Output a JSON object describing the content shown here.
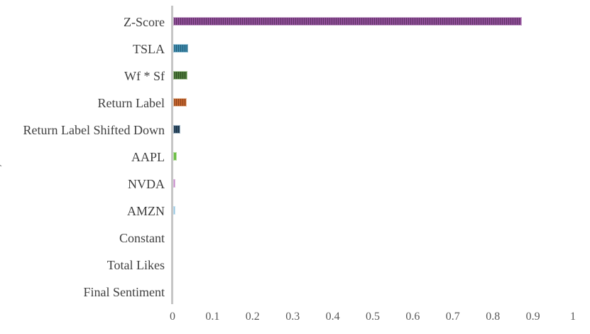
{
  "chart_data": {
    "type": "bar",
    "orientation": "horizontal",
    "title": "",
    "xlabel": "",
    "ylabel": "",
    "grid": false,
    "legend": false,
    "xlim": [
      0,
      1
    ],
    "x_ticks": [
      "0",
      "0.1",
      "0.2",
      "0.3",
      "0.4",
      "0.5",
      "0.6",
      "0.7",
      "0.8",
      "0.9",
      "1"
    ],
    "categories": [
      "Z-Score",
      "TSLA",
      "Wf * Sf",
      "Return Label",
      "Return Label Shifted Down",
      "AAPL",
      "NVDA",
      "AMZN",
      "Constant",
      "Total Likes",
      "Final Sentiment"
    ],
    "values": [
      0.87,
      0.037,
      0.035,
      0.033,
      0.018,
      0.009,
      0.006,
      0.005,
      0,
      0,
      0
    ],
    "bar_style": "vertical-stripe-hatch",
    "bar_colors": [
      {
        "base": "#8E4D96",
        "stripe": "#5F3266",
        "edge": "#C9A8CD"
      },
      {
        "base": "#3C87A8",
        "stripe": "#24607C",
        "edge": "#9FC8DA"
      },
      {
        "base": "#4C783A",
        "stripe": "#2F5221",
        "edge": "#A8C79A"
      },
      {
        "base": "#C2632D",
        "stripe": "#8F451C",
        "edge": "#EBC6AB"
      },
      {
        "base": "#2F4E67",
        "stripe": "#1B3143",
        "edge": "#A5B9C8"
      },
      {
        "base": "#6CBE45",
        "stripe": "#529E2F",
        "edge": "#BCE2A8"
      },
      {
        "base": "#C688CA",
        "stripe": "#AF6BB3",
        "edge": "#E0BFE2"
      },
      {
        "base": "#92C6E1",
        "stripe": "#7AB5D6",
        "edge": "#C8E2F1"
      },
      {
        "base": "#8E4D96",
        "stripe": "#5F3266",
        "edge": "#C9A8CD"
      },
      {
        "base": "#3C87A8",
        "stripe": "#24607C",
        "edge": "#9FC8DA"
      },
      {
        "base": "#4C783A",
        "stripe": "#2F5221",
        "edge": "#A8C79A"
      }
    ],
    "axis_color": "#C6C6C6",
    "category_label_color": "#3F3F3F",
    "tick_label_color": "#595959",
    "clipped_left_edge_fragment": "("
  }
}
